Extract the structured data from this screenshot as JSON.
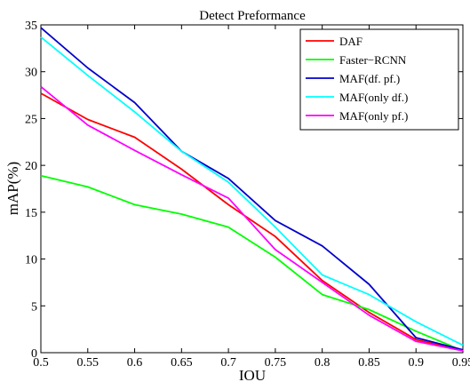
{
  "chart_data": {
    "type": "line",
    "title": "Detect Preformance",
    "xlabel": "IOU",
    "ylabel": "mAP(%)",
    "x": [
      0.5,
      0.55,
      0.6,
      0.65,
      0.7,
      0.75,
      0.8,
      0.85,
      0.9,
      0.95
    ],
    "xlim": [
      0.5,
      0.95
    ],
    "ylim": [
      0,
      35
    ],
    "x_ticks": [
      0.5,
      0.55,
      0.6,
      0.65,
      0.7,
      0.75,
      0.8,
      0.85,
      0.9,
      0.95
    ],
    "x_tick_labels": [
      "0.5",
      "0.55",
      "0.6",
      "0.65",
      "0.7",
      "0.75",
      "0.8",
      "0.85",
      "0.9",
      "0.95"
    ],
    "y_ticks": [
      0,
      5,
      10,
      15,
      20,
      25,
      30,
      35
    ],
    "y_tick_labels": [
      "0",
      "5",
      "10",
      "15",
      "20",
      "25",
      "30",
      "35"
    ],
    "grid": false,
    "legend_position": "top-right",
    "series": [
      {
        "name": "DAF",
        "color": "#ff0000",
        "values": [
          27.7,
          24.9,
          23.0,
          19.6,
          15.8,
          12.4,
          7.7,
          4.3,
          1.4,
          0.2
        ]
      },
      {
        "name": "Faster−RCNN",
        "color": "#00ff00",
        "values": [
          18.9,
          17.7,
          15.8,
          14.8,
          13.4,
          10.2,
          6.2,
          4.6,
          2.3,
          0.2
        ]
      },
      {
        "name": "MAF(df. pf.)",
        "color": "#0000cc",
        "values": [
          34.7,
          30.4,
          26.7,
          21.5,
          18.6,
          14.1,
          11.4,
          7.3,
          1.6,
          0.3
        ]
      },
      {
        "name": "MAF(only df.)",
        "color": "#00ffff",
        "values": [
          33.7,
          29.6,
          25.7,
          21.5,
          18.2,
          13.4,
          8.3,
          6.2,
          3.3,
          0.8
        ]
      },
      {
        "name": "MAF(only pf.)",
        "color": "#ff00ff",
        "values": [
          28.4,
          24.3,
          21.6,
          19.0,
          16.5,
          11.0,
          7.5,
          4.0,
          1.2,
          0.2
        ]
      }
    ]
  }
}
